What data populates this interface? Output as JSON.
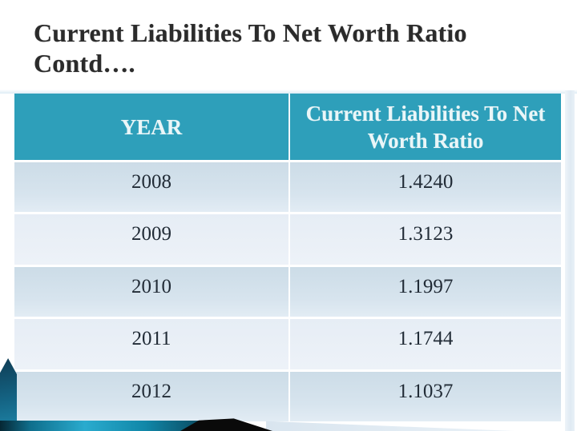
{
  "slide": {
    "title_line1": "Current Liabilities To Net Worth Ratio",
    "title_line2": "Contd…."
  },
  "table": {
    "headers": [
      "YEAR",
      "Current Liabilities To Net Worth Ratio"
    ],
    "rows": [
      {
        "year": "2008",
        "ratio": "1.4240"
      },
      {
        "year": "2009",
        "ratio": "1.3123"
      },
      {
        "year": "2010",
        "ratio": "1.1997"
      },
      {
        "year": "2011",
        "ratio": "1.1744"
      },
      {
        "year": "2012",
        "ratio": "1.1037"
      }
    ]
  },
  "colors": {
    "header_bg": "#2E9FBA",
    "header_text": "#EAF6F8",
    "row_dark": "#CCDCE7",
    "row_light": "#E6EDF5",
    "cell_text": "#212B36",
    "title_text": "#2B2B2B",
    "accent_teal": "#2AABCE",
    "wedge_dark": "#0F3D55",
    "decoration_black": "#0A0A0A",
    "decoration_silver": "#DCE7F0"
  }
}
